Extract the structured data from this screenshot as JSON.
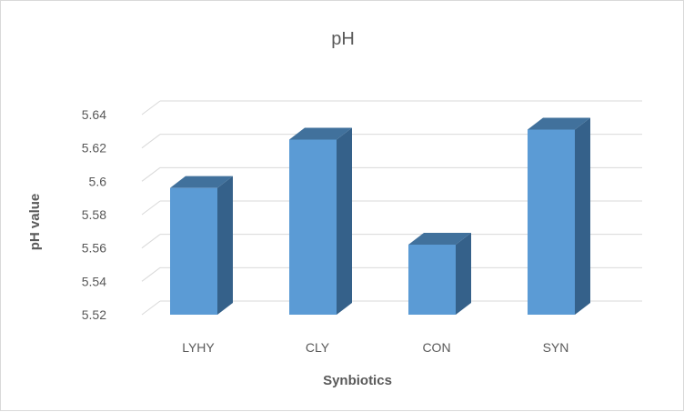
{
  "chart_data": {
    "type": "bar",
    "style": "3d-column",
    "title": "pH",
    "xlabel": "Synbiotics",
    "ylabel": "pH value",
    "categories": [
      "LYHY",
      "CLY",
      "CON",
      "SYN"
    ],
    "values": [
      5.596,
      5.625,
      5.562,
      5.631
    ],
    "ylim": [
      5.52,
      5.64
    ],
    "yticks": [
      5.52,
      5.54,
      5.56,
      5.58,
      5.6,
      5.62,
      5.64
    ],
    "ytick_labels": [
      "5.52",
      "5.54",
      "5.56",
      "5.58",
      "5.6",
      "5.62",
      "5.64"
    ],
    "grid": true,
    "legend": "none",
    "colors": {
      "bar_front": "#5b9bd5",
      "bar_top": "#41719c",
      "bar_side": "#35618a",
      "grid": "#d9d9d9",
      "text": "#595959"
    }
  }
}
